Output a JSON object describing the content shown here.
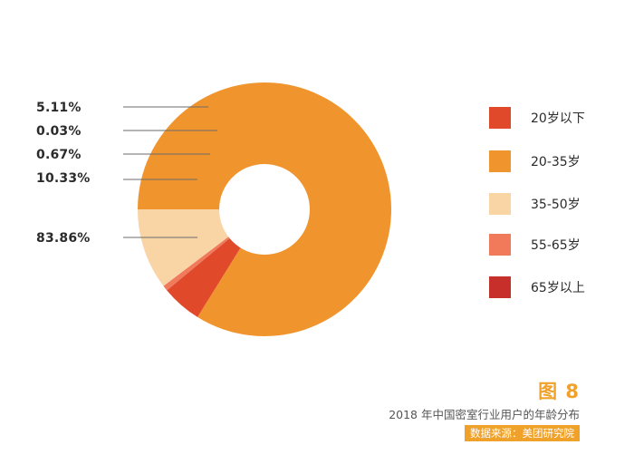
{
  "chart_data": {
    "type": "pie",
    "variant": "donut",
    "title": "2018 年中国密室行业用户的年龄分布",
    "slices": [
      {
        "label": "20岁以下",
        "value": 5.11,
        "value_label": "5.11%",
        "color": "#e1492b"
      },
      {
        "label": "20-35岁",
        "value": 83.86,
        "value_label": "83.86%",
        "color": "#f0952e"
      },
      {
        "label": "35-50岁",
        "value": 10.33,
        "value_label": "10.33%",
        "color": "#f9d5a6"
      },
      {
        "label": "55-65岁",
        "value": 0.67,
        "value_label": "0.67%",
        "color": "#f07a5a"
      },
      {
        "label": "65岁以上",
        "value": 0.03,
        "value_label": "0.03%",
        "color": "#c62f2a"
      }
    ],
    "legend_placement": "right"
  },
  "figure": {
    "number": "图 8",
    "caption": "2018 年中国密室行业用户的年龄分布",
    "source": "数据来源：美团研究院"
  }
}
